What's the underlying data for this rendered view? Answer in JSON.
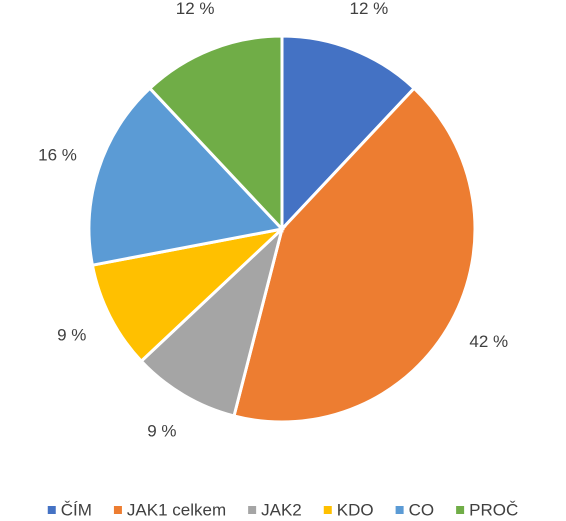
{
  "chart_data": {
    "type": "pie",
    "categories": [
      "ČÍM",
      "JAK1 celkem",
      "JAK2",
      "KDO",
      "CO",
      "PROČ"
    ],
    "values": [
      12,
      42,
      9,
      9,
      16,
      12
    ],
    "value_labels": [
      "12 %",
      "42 %",
      "9 %",
      "9 %",
      "16 %",
      "12 %"
    ],
    "colors": [
      "#4472c4",
      "#ed7d31",
      "#a5a5a5",
      "#ffc000",
      "#5b9bd5",
      "#70ad47"
    ],
    "legend": "bottom"
  }
}
